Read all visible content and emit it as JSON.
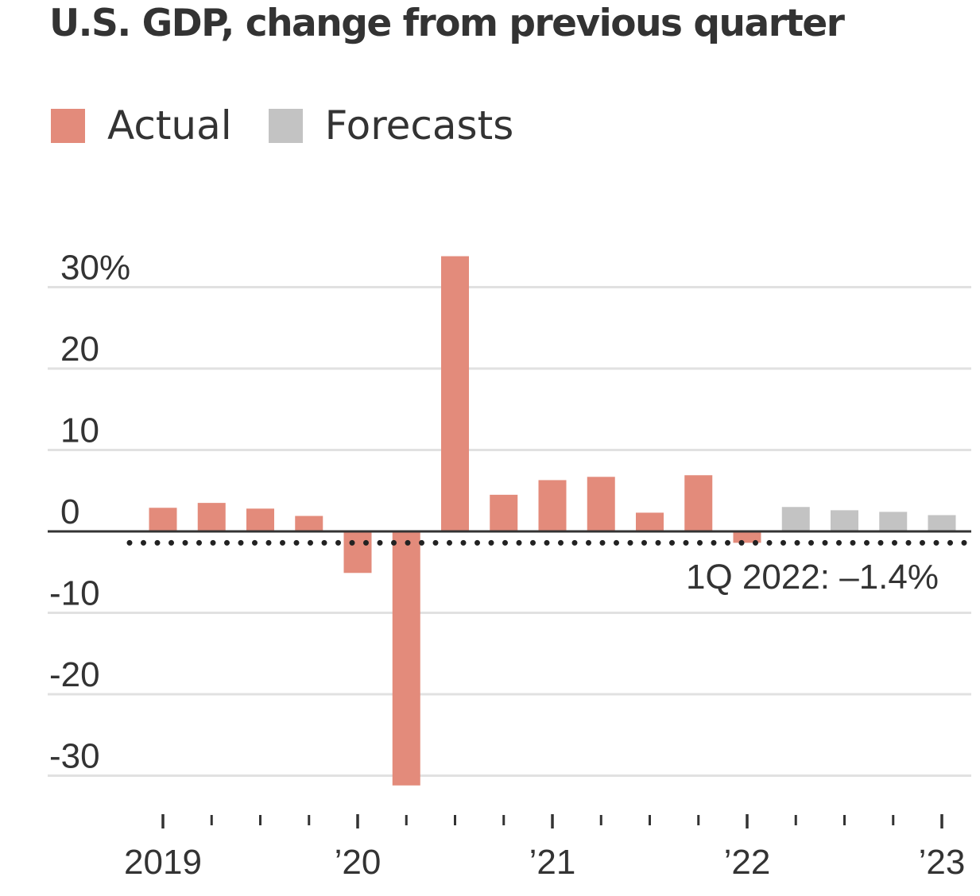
{
  "colors": {
    "actual": "#e38b7b",
    "forecast": "#c3c3c3",
    "gridline": "#e1e1e1",
    "zero_line": "#333333",
    "dots": "#222222",
    "text": "#333333"
  },
  "legend": {
    "actual_label": "Actual",
    "forecast_label": "Forecasts"
  },
  "chart_data": {
    "type": "bar",
    "title": "U.S. GDP, change from previous quarter",
    "xlabel": "",
    "ylabel": "",
    "ylim": [
      -32,
      33
    ],
    "grid": true,
    "legend_position": "top-left",
    "y_ticks": [
      {
        "value": 30,
        "label": "30%"
      },
      {
        "value": 20,
        "label": "20"
      },
      {
        "value": 10,
        "label": "10"
      },
      {
        "value": 0,
        "label": "0"
      },
      {
        "value": -10,
        "label": "-10"
      },
      {
        "value": -20,
        "label": "-20"
      },
      {
        "value": -30,
        "label": "-30"
      }
    ],
    "x_labels": [
      {
        "index": 0,
        "label": "2019"
      },
      {
        "index": 4,
        "label": "’20"
      },
      {
        "index": 8,
        "label": "’21"
      },
      {
        "index": 12,
        "label": "’22"
      },
      {
        "index": 16,
        "label": "’23"
      }
    ],
    "quarters": 17,
    "series": [
      {
        "name": "Actual",
        "values": [
          2.9,
          3.5,
          2.8,
          1.9,
          -5.1,
          -31.2,
          33.8,
          4.5,
          6.3,
          6.7,
          2.3,
          6.9,
          -1.4
        ]
      },
      {
        "name": "Forecasts",
        "values": [
          3.0,
          2.6,
          2.4,
          2.0
        ]
      }
    ],
    "reference_line": {
      "value": -1.4
    },
    "annotations": [
      {
        "text": "1Q 2022: –1.4%"
      }
    ]
  }
}
